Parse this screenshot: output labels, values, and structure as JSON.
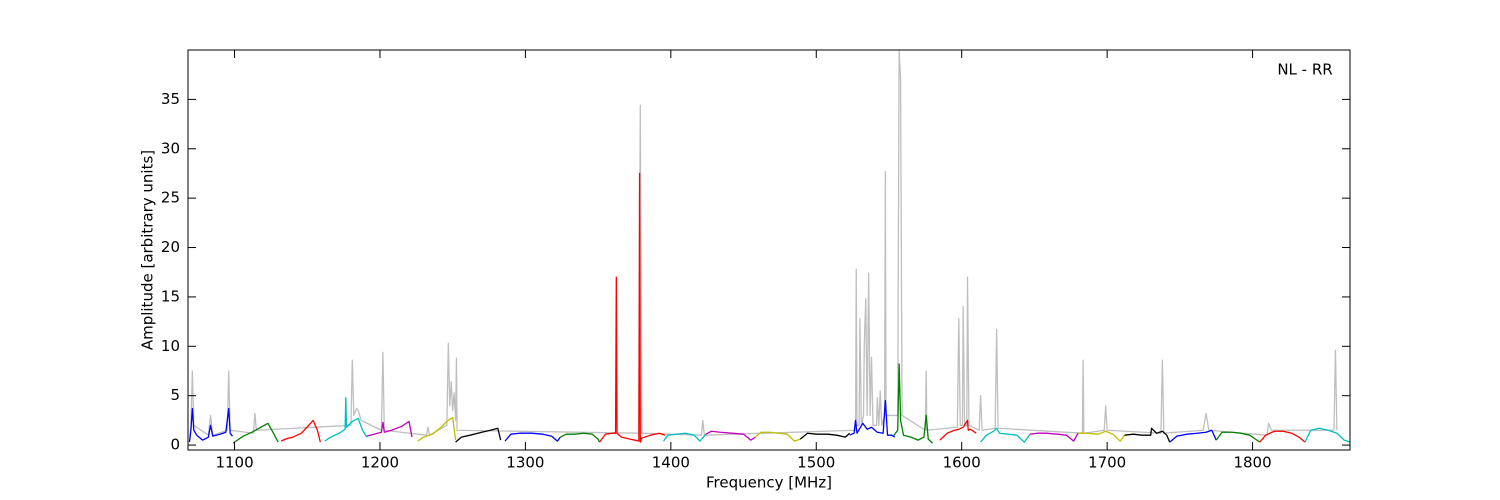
{
  "chart_data": {
    "type": "line",
    "xlabel": "Frequency [MHz]",
    "ylabel": "Amplitude [arbitrary units]",
    "annotation": "NL - RR",
    "xlim": [
      1068,
      1867
    ],
    "ylim": [
      -0.5,
      40
    ],
    "xticks": [
      1100,
      1200,
      1300,
      1400,
      1500,
      1600,
      1700,
      1800
    ],
    "yticks": [
      0,
      5,
      10,
      15,
      20,
      25,
      30,
      35
    ],
    "grid": false,
    "series": [
      {
        "color": "#bfbfbf",
        "x": [
          1069,
          1070,
          1071,
          1072,
          1082,
          1083.5,
          1085,
          1095,
          1096,
          1097,
          1113,
          1114,
          1115,
          1180,
          1181,
          1182,
          1184,
          1185,
          1187,
          1201,
          1202,
          1203,
          1232,
          1233,
          1234,
          1246,
          1247,
          1248,
          1249,
          1250,
          1251,
          1252,
          1252.6,
          1253,
          1378,
          1379,
          1380,
          1421,
          1422,
          1423,
          1527,
          1527.5,
          1528,
          1529.5,
          1530,
          1531,
          1532.5,
          1533,
          1534,
          1535,
          1536,
          1537,
          1538,
          1539,
          1541.5,
          1542,
          1543,
          1544,
          1545,
          1547,
          1547.5,
          1548,
          1556,
          1557,
          1558,
          1559,
          1575,
          1575.6,
          1576,
          1597,
          1598,
          1599,
          1600.5,
          1601,
          1602,
          1603.5,
          1604,
          1605,
          1612,
          1613,
          1614,
          1623,
          1624,
          1625,
          1683,
          1683.5,
          1684,
          1698,
          1699,
          1700,
          1737,
          1738,
          1739,
          1766,
          1768,
          1770,
          1810,
          1811,
          1813,
          1856,
          1857,
          1858
        ],
        "values": [
          0.3,
          2,
          7.5,
          2,
          1,
          3,
          1,
          1.5,
          7.5,
          1.5,
          1.2,
          3.2,
          1.5,
          2,
          8.6,
          3,
          3.7,
          3.5,
          2.5,
          1.5,
          9.4,
          1.5,
          1,
          1.8,
          1,
          2,
          10.3,
          4,
          6.4,
          3.5,
          5.3,
          2.5,
          8.8,
          1.5,
          1.2,
          34.4,
          1.2,
          1,
          2.5,
          1,
          1.5,
          17.8,
          2,
          2,
          12.8,
          2,
          3,
          10,
          14.8,
          3,
          17.4,
          3,
          8.9,
          2,
          2,
          4.8,
          2,
          5.5,
          2,
          3,
          27.7,
          3,
          3,
          39.9,
          37,
          3,
          1.5,
          7.5,
          1.5,
          1.8,
          12.8,
          2,
          2,
          14,
          2,
          2,
          17,
          2,
          1.5,
          5,
          1.5,
          1.7,
          11.7,
          1.7,
          1.2,
          8.6,
          1.2,
          1.5,
          4,
          1.5,
          1.2,
          8.6,
          1.2,
          1.5,
          3.2,
          1.5,
          1,
          2.2,
          1.5,
          1.5,
          9.6,
          1.5
        ]
      },
      {
        "color": "#0000ff",
        "x": [
          1069,
          1070,
          1071,
          1072,
          1074,
          1078,
          1082,
          1083.5,
          1085,
          1090,
          1094,
          1096,
          1097,
          1098.6
        ],
        "values": [
          0.3,
          1.5,
          3.7,
          1.5,
          1.0,
          0.5,
          0.8,
          2.0,
          0.9,
          1.1,
          1.3,
          3.7,
          1.2,
          0.9
        ]
      },
      {
        "color": "#008000",
        "x": [
          1099,
          1101,
          1106,
          1112,
          1118,
          1123,
          1126,
          1130
        ],
        "values": [
          0.2,
          0.4,
          0.9,
          1.3,
          1.8,
          2.2,
          1.4,
          0.3
        ]
      },
      {
        "color": "#ff0000",
        "x": [
          1132,
          1135,
          1140,
          1146,
          1151,
          1154,
          1157,
          1159
        ],
        "values": [
          0.4,
          0.6,
          0.8,
          1.2,
          2.0,
          2.5,
          1.5,
          0.3
        ]
      },
      {
        "color": "#00bfbf",
        "x": [
          1162,
          1166,
          1172,
          1176,
          1176.5,
          1177,
          1181,
          1185,
          1188,
          1191
        ],
        "values": [
          0.4,
          0.8,
          1.2,
          1.6,
          4.8,
          1.8,
          2.4,
          2.7,
          1.5,
          0.8
        ]
      },
      {
        "color": "#bf00bf",
        "x": [
          1191,
          1196,
          1201,
          1202,
          1203,
          1208,
          1215,
          1220,
          1222
        ],
        "values": [
          0.9,
          1.1,
          1.3,
          2.3,
          1.3,
          1.5,
          1.9,
          2.4,
          0.8
        ]
      },
      {
        "color": "#bfbf00",
        "x": [
          1226,
          1230,
          1236,
          1242,
          1246,
          1250,
          1252
        ],
        "values": [
          0.4,
          0.8,
          1.1,
          1.8,
          2.4,
          2.8,
          0.5
        ]
      },
      {
        "color": "#000000",
        "x": [
          1252,
          1256,
          1262,
          1270,
          1276,
          1281,
          1283
        ],
        "values": [
          0.3,
          0.8,
          1.0,
          1.3,
          1.5,
          1.7,
          0.5
        ]
      },
      {
        "color": "#0000ff",
        "x": [
          1286,
          1290,
          1296,
          1304,
          1312,
          1318,
          1322,
          1324
        ],
        "values": [
          0.4,
          1.1,
          1.2,
          1.2,
          1.1,
          0.9,
          0.4,
          0.8
        ]
      },
      {
        "color": "#008000",
        "x": [
          1324,
          1328,
          1334,
          1340,
          1346,
          1350,
          1351
        ],
        "values": [
          0.8,
          1.1,
          1.1,
          1.2,
          1.1,
          0.6,
          0.3
        ]
      },
      {
        "color": "#ff0000",
        "x": [
          1351,
          1355,
          1360,
          1362,
          1362.5,
          1363,
          1366,
          1372,
          1378,
          1378.5,
          1379,
          1380,
          1386,
          1392,
          1396
        ],
        "values": [
          0.3,
          1.1,
          1.2,
          1.2,
          17,
          1.2,
          0.8,
          0.6,
          0.4,
          27.5,
          0.3,
          0.7,
          1.0,
          1.2,
          1.0
        ]
      },
      {
        "color": "#00bfbf",
        "x": [
          1395,
          1398,
          1404,
          1410,
          1416,
          1420,
          1424
        ],
        "values": [
          0.4,
          1.0,
          1.1,
          1.2,
          1.0,
          0.4,
          1.1
        ]
      },
      {
        "color": "#bf00bf",
        "x": [
          1424,
          1428,
          1434,
          1442,
          1450,
          1455,
          1458
        ],
        "values": [
          1.1,
          1.4,
          1.3,
          1.2,
          1.1,
          0.5,
          0.8
        ]
      },
      {
        "color": "#bfbf00",
        "x": [
          1458,
          1462,
          1468,
          1474,
          1480,
          1485,
          1489
        ],
        "values": [
          0.8,
          1.3,
          1.3,
          1.2,
          1.1,
          0.4,
          0.6
        ]
      },
      {
        "color": "#000000",
        "x": [
          1489,
          1494,
          1500,
          1508,
          1514,
          1520,
          1523
        ],
        "values": [
          0.6,
          1.2,
          1.1,
          1.1,
          1.0,
          0.8,
          1.2
        ]
      },
      {
        "color": "#0000ff",
        "x": [
          1523,
          1526,
          1527,
          1528,
          1532,
          1535,
          1538,
          1542,
          1546,
          1547.5,
          1549,
          1552,
          1554
        ],
        "values": [
          1.0,
          1.2,
          2.5,
          1.2,
          2.2,
          1.6,
          1.8,
          1.3,
          1.2,
          4.5,
          1.0,
          1.0,
          0.8
        ]
      },
      {
        "color": "#008000",
        "x": [
          1553,
          1556,
          1557,
          1558,
          1560,
          1565,
          1570,
          1574,
          1575.6,
          1577,
          1580
        ],
        "values": [
          0.9,
          1.5,
          8.2,
          2.5,
          1.0,
          0.8,
          0.5,
          0.8,
          3.0,
          0.6,
          0.2
        ]
      },
      {
        "color": "#ff0000",
        "x": [
          1585,
          1590,
          1595,
          1598,
          1601,
          1604,
          1604.5,
          1606,
          1610
        ],
        "values": [
          0.5,
          1.2,
          1.5,
          1.6,
          1.8,
          2.5,
          1.5,
          1.6,
          1.2
        ]
      },
      {
        "color": "#00bfbf",
        "x": [
          1613,
          1617,
          1622,
          1624,
          1626,
          1632,
          1638,
          1643,
          1647
        ],
        "values": [
          0.3,
          1.0,
          1.4,
          1.7,
          1.2,
          1.1,
          1.0,
          0.3,
          1.1
        ]
      },
      {
        "color": "#bf00bf",
        "x": [
          1647,
          1652,
          1658,
          1666,
          1672,
          1677,
          1680
        ],
        "values": [
          1.1,
          1.2,
          1.2,
          1.1,
          1.0,
          0.4,
          1.2
        ]
      },
      {
        "color": "#bfbf00",
        "x": [
          1680,
          1686,
          1694,
          1699,
          1704,
          1709,
          1712
        ],
        "values": [
          1.2,
          1.2,
          1.1,
          1.4,
          1.1,
          0.4,
          1.0
        ]
      },
      {
        "color": "#000000",
        "x": [
          1712,
          1718,
          1724,
          1730,
          1730.5,
          1734,
          1738,
          1741,
          1743
        ],
        "values": [
          1.0,
          1.1,
          1.0,
          1.0,
          1.7,
          1.2,
          1.4,
          1.0,
          0.3
        ]
      },
      {
        "color": "#0000ff",
        "x": [
          1743,
          1748,
          1755,
          1762,
          1768,
          1772,
          1775
        ],
        "values": [
          0.3,
          0.9,
          1.1,
          1.2,
          1.3,
          1.5,
          0.5
        ]
      },
      {
        "color": "#008000",
        "x": [
          1775,
          1779,
          1786,
          1792,
          1798,
          1802,
          1805
        ],
        "values": [
          0.5,
          1.3,
          1.3,
          1.2,
          1.0,
          0.6,
          0.3
        ]
      },
      {
        "color": "#ff0000",
        "x": [
          1805,
          1809,
          1815,
          1821,
          1827,
          1832,
          1836
        ],
        "values": [
          0.3,
          1.0,
          1.4,
          1.4,
          1.2,
          0.8,
          0.3
        ]
      },
      {
        "color": "#00bfbf",
        "x": [
          1836,
          1840,
          1846,
          1852,
          1858,
          1863,
          1867
        ],
        "values": [
          0.3,
          1.5,
          1.7,
          1.5,
          1.2,
          0.5,
          0.3
        ]
      }
    ]
  }
}
